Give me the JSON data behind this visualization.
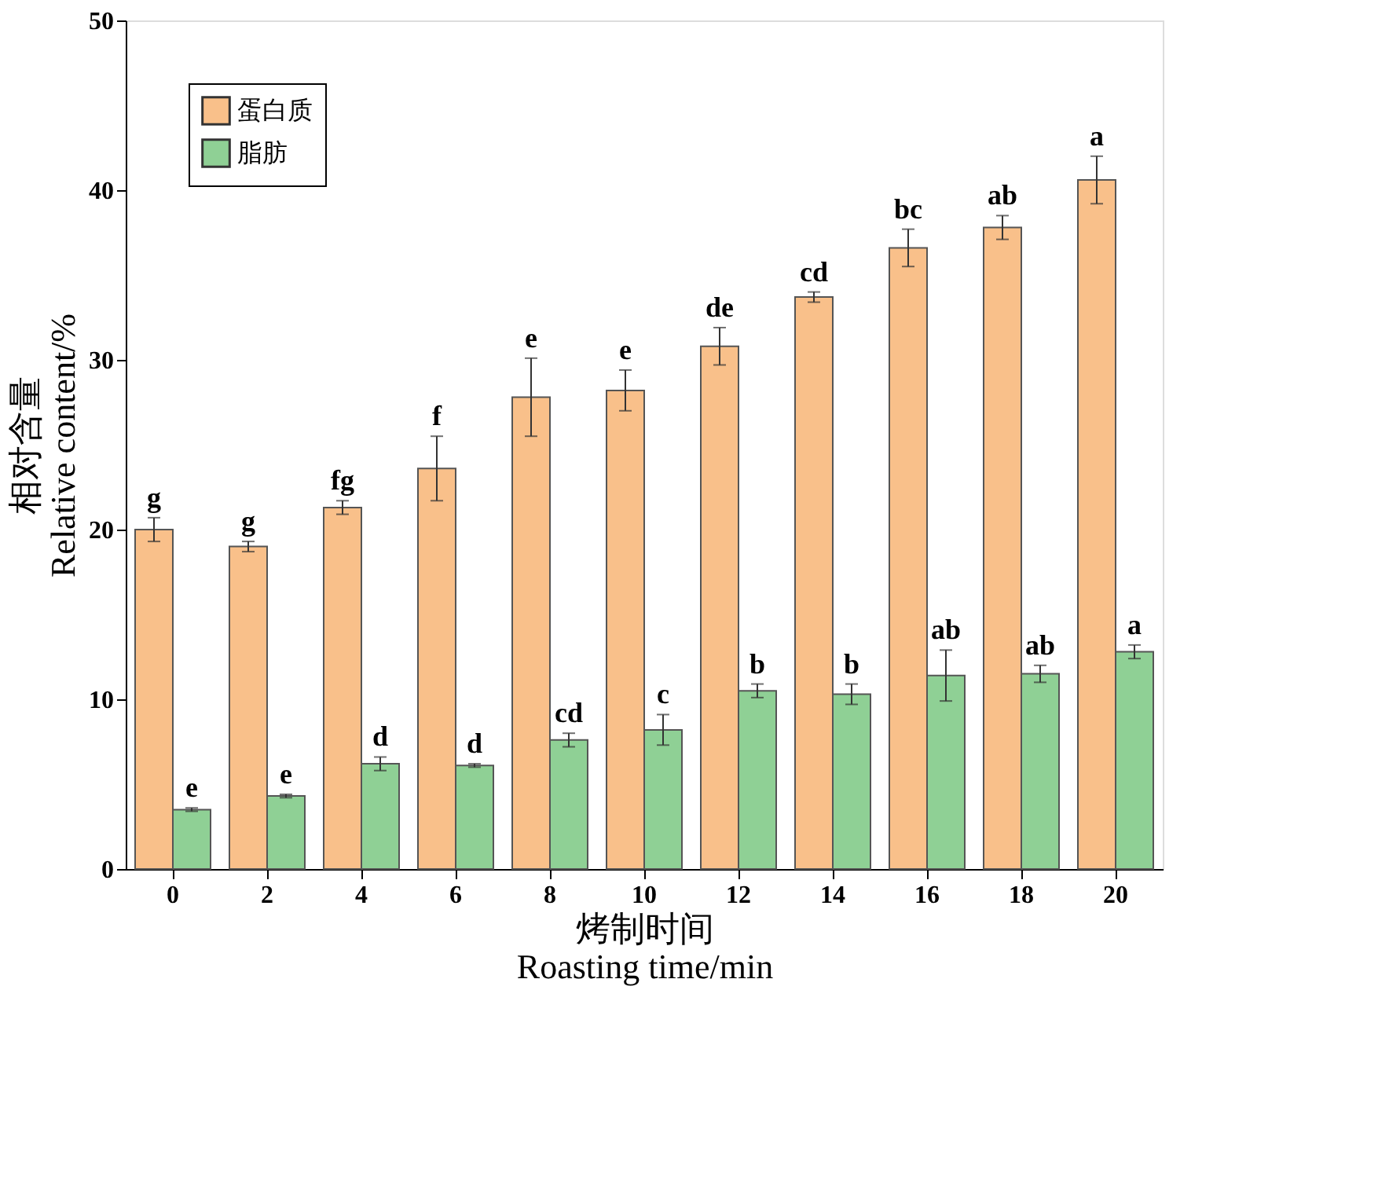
{
  "chart_data": {
    "type": "bar",
    "xlabel": "烤制时间\nRoasting time/min",
    "ylabel": "相对含量\nRelative content/%",
    "categories": [
      "0",
      "2",
      "4",
      "6",
      "8",
      "10",
      "12",
      "14",
      "16",
      "18",
      "20"
    ],
    "series": [
      {
        "name": "蛋白质",
        "color": "#f9c08a",
        "values": [
          20.0,
          19.0,
          21.3,
          23.6,
          27.8,
          28.2,
          30.8,
          33.7,
          36.6,
          37.8,
          40.6
        ],
        "errors": [
          0.7,
          0.3,
          0.4,
          1.9,
          2.3,
          1.2,
          1.1,
          0.3,
          1.1,
          0.7,
          1.4
        ]
      },
      {
        "name": "脂肪",
        "color": "#8fd095",
        "values": [
          3.5,
          4.3,
          6.2,
          6.1,
          7.6,
          8.2,
          10.5,
          10.3,
          11.4,
          11.5,
          12.8
        ],
        "errors": [
          0.1,
          0.1,
          0.4,
          0.1,
          0.4,
          0.9,
          0.4,
          0.6,
          1.5,
          0.5,
          0.4
        ]
      }
    ],
    "ylim": [
      0,
      50
    ],
    "yticks": [
      0,
      10,
      20,
      30,
      40,
      50
    ],
    "grid": false,
    "legend": "top left",
    "annotations": [
      {
        "text": "g",
        "x": "0",
        "y": 20.0
      },
      {
        "text": "g",
        "x": "2",
        "y": 19.0
      },
      {
        "text": "fg",
        "x": "4",
        "y": 21.3
      },
      {
        "text": "f",
        "x": "6",
        "y": 23.6
      },
      {
        "text": "e",
        "x": "8",
        "y": 27.8
      },
      {
        "text": "e",
        "x": "10",
        "y": 28.2
      },
      {
        "text": "de",
        "x": "12",
        "y": 30.8
      },
      {
        "text": "cd",
        "x": "14",
        "y": 33.7
      },
      {
        "text": "bc",
        "x": "16",
        "y": 36.6
      },
      {
        "text": "ab",
        "x": "18",
        "y": 37.8
      },
      {
        "text": "a",
        "x": "20",
        "y": 40.6
      },
      {
        "text": "e",
        "x": "0",
        "y": 3.5
      },
      {
        "text": "e",
        "x": "2",
        "y": 4.3
      },
      {
        "text": "d",
        "x": "4",
        "y": 6.2
      },
      {
        "text": "d",
        "x": "6",
        "y": 6.1
      },
      {
        "text": "cd",
        "x": "8",
        "y": 7.6
      },
      {
        "text": "c",
        "x": "10",
        "y": 8.2
      },
      {
        "text": "b",
        "x": "12",
        "y": 10.5
      },
      {
        "text": "b",
        "x": "14",
        "y": 10.3
      },
      {
        "text": "ab",
        "x": "16",
        "y": 11.4
      },
      {
        "text": "ab",
        "x": "18",
        "y": 11.5
      },
      {
        "text": "a",
        "x": "20",
        "y": 12.8
      }
    ]
  }
}
